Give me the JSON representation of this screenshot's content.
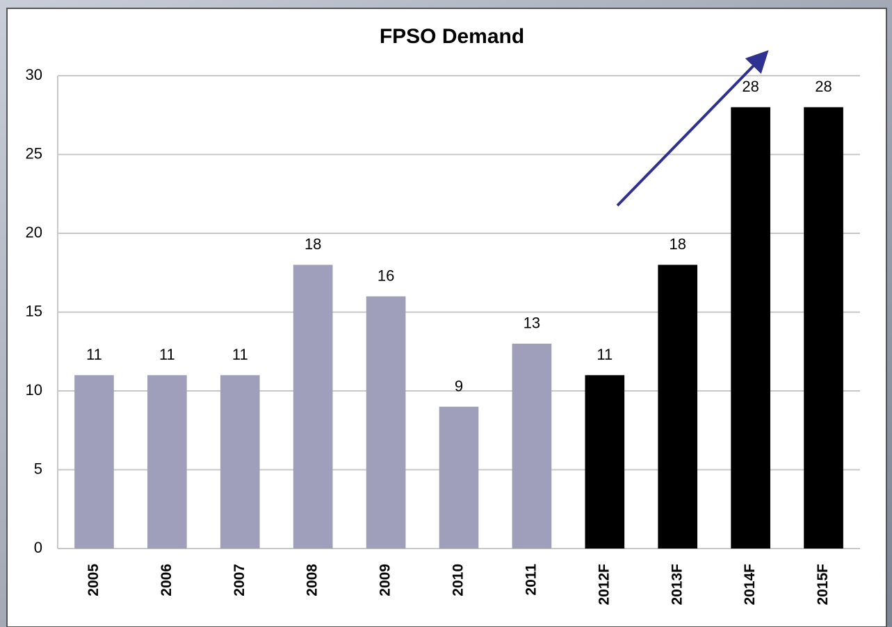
{
  "chart_data": {
    "type": "bar",
    "title": "FPSO Demand",
    "categories": [
      "2005",
      "2006",
      "2007",
      "2008",
      "2009",
      "2010",
      "2011",
      "2012F",
      "2013F",
      "2014F",
      "2015F"
    ],
    "values": [
      11,
      11,
      11,
      18,
      16,
      9,
      13,
      11,
      18,
      28,
      28
    ],
    "colors": [
      "#9f9fbb",
      "#9f9fbb",
      "#9f9fbb",
      "#9f9fbb",
      "#9f9fbb",
      "#9f9fbb",
      "#9f9fbb",
      "#000000",
      "#000000",
      "#000000",
      "#000000"
    ],
    "ylim": [
      0,
      30
    ],
    "yticks": [
      0,
      5,
      10,
      15,
      20,
      25,
      30
    ],
    "grid": true
  }
}
